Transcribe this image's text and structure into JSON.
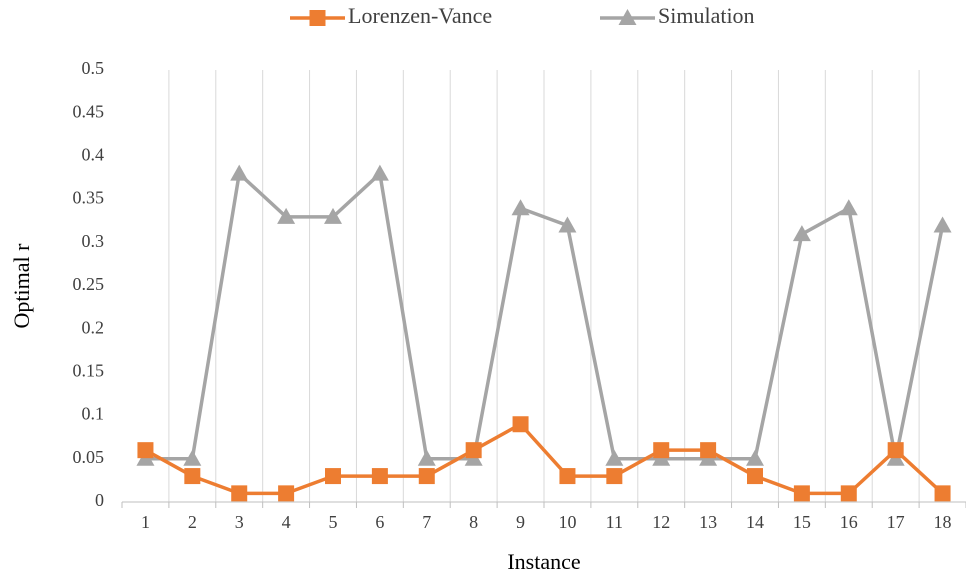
{
  "chart_data": {
    "type": "line",
    "x_label": "Instance",
    "y_label": "Optimal r",
    "categories": [
      "1",
      "2",
      "3",
      "4",
      "5",
      "6",
      "7",
      "8",
      "9",
      "10",
      "11",
      "12",
      "13",
      "14",
      "15",
      "16",
      "17",
      "18"
    ],
    "series": [
      {
        "name": "Lorenzen-Vance",
        "color": "#ED7D31",
        "marker": "square",
        "values": [
          0.06,
          0.03,
          0.01,
          0.01,
          0.03,
          0.03,
          0.03,
          0.06,
          0.09,
          0.03,
          0.03,
          0.06,
          0.06,
          0.03,
          0.01,
          0.01,
          0.06,
          0.01
        ]
      },
      {
        "name": "Simulation",
        "color": "#A5A5A5",
        "marker": "triangle",
        "values": [
          0.05,
          0.05,
          0.38,
          0.33,
          0.33,
          0.38,
          0.05,
          0.05,
          0.34,
          0.32,
          0.05,
          0.05,
          0.05,
          0.05,
          0.31,
          0.34,
          0.05,
          0.32
        ]
      }
    ],
    "ylim": [
      0,
      0.5
    ],
    "yticks": [
      0,
      0.05,
      0.1,
      0.15,
      0.2,
      0.25,
      0.3,
      0.35,
      0.4,
      0.45,
      0.5
    ],
    "grid": true,
    "legend": "top"
  }
}
